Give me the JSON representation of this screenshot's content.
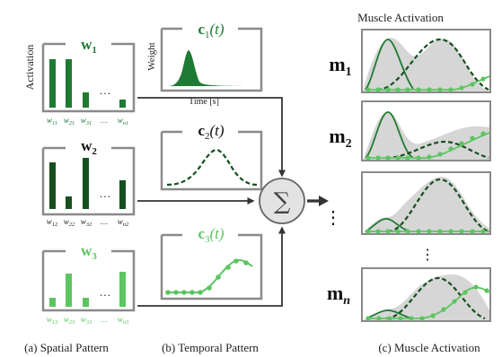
{
  "colors": {
    "c1": "#1f7a33",
    "c2": "#16501f",
    "c3": "#5cc561",
    "box": "#8a8a8a",
    "gray_fill": "#d6d6d6",
    "line": "#333333"
  },
  "spatial": {
    "ylabel": "Activation",
    "dots": "…",
    "blocks": [
      {
        "title_base": "w",
        "title_sub": "1",
        "ticks": [
          "w11",
          "w21",
          "w31",
          "…",
          "wn1"
        ],
        "bars": [
          1.0,
          1.0,
          0.33,
          0.14
        ],
        "color": "c1"
      },
      {
        "title_base": "w",
        "title_sub": "2",
        "ticks": [
          "w12",
          "w22",
          "w32",
          "…",
          "wn2"
        ],
        "bars": [
          0.96,
          0.3,
          1.0,
          0.67
        ],
        "color": "c2"
      },
      {
        "title_base": "w",
        "title_sub": "3",
        "ticks": [
          "w13",
          "w23",
          "w33",
          "…",
          "wn3"
        ],
        "bars": [
          0.28,
          0.98,
          0.28,
          1.0
        ],
        "color": "c3"
      }
    ]
  },
  "temporal": {
    "c1": {
      "label": "c1(t)",
      "ylabel": "Weight",
      "xlabel": "Time [s]"
    },
    "c2": {
      "label": "c2(t)"
    },
    "c3": {
      "label": "c3(t)"
    }
  },
  "sum_symbol": "∑",
  "muscle": {
    "title": "Muscle Activation",
    "labels": [
      {
        "base": "m",
        "sub": "1"
      },
      {
        "base": "m",
        "sub": "2"
      },
      {
        "base": "m",
        "sub": "n"
      }
    ],
    "vdots": "⋮"
  },
  "captions": {
    "a": "(a) Spatial Pattern",
    "b": "(b) Temporal Pattern",
    "c": "(c) Muscle Activation"
  }
}
